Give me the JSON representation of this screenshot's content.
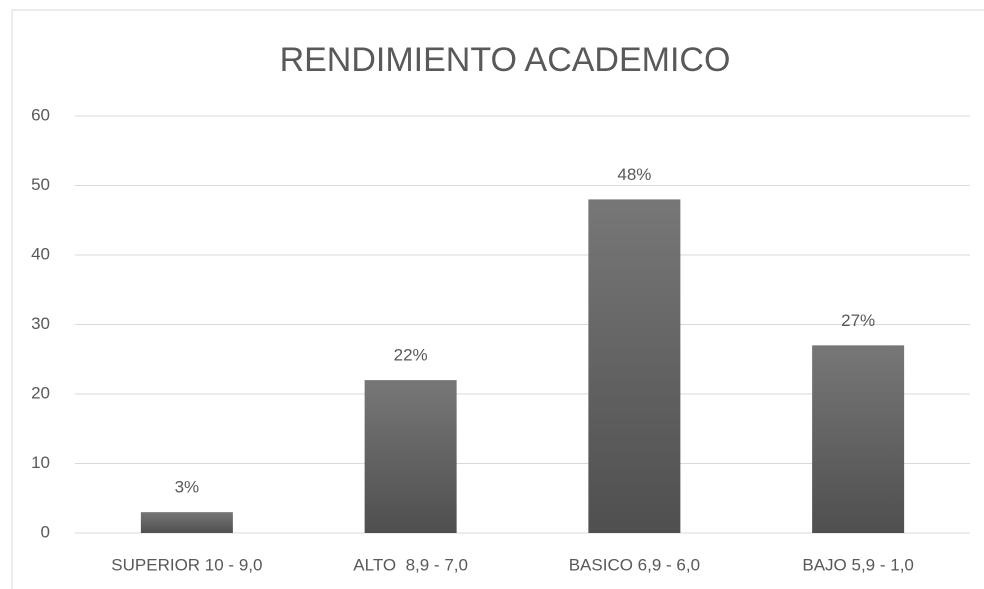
{
  "chart_data": {
    "type": "bar",
    "title": "RENDIMIENTO ACADEMICO",
    "categories": [
      "SUPERIOR 10 - 9,0",
      "ALTO  8,9 - 7,0",
      "BASICO 6,9 - 6,0",
      "BAJO 5,9 - 1,0"
    ],
    "values": [
      3,
      22,
      48,
      27
    ],
    "value_labels": [
      "3%",
      "22%",
      "48%",
      "27%"
    ],
    "color": "#606060",
    "ylim": [
      0,
      60
    ],
    "yticks": [
      0,
      10,
      20,
      30,
      40,
      50,
      60
    ],
    "grid": true
  }
}
